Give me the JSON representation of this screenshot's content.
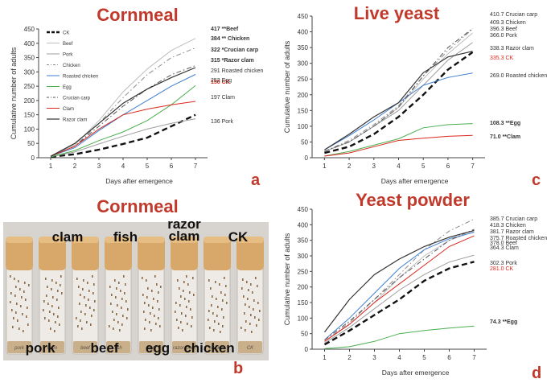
{
  "colors": {
    "title": "#c0392b",
    "ck": "#111111",
    "beef": "#bdbdbd",
    "pork": "#9e9e9e",
    "chicken": "#8c8c8c",
    "roasted_chicken": "#3f7fd0",
    "egg": "#4caf50",
    "crucian_carp": "#555555",
    "clam": "#d9281e",
    "razor_clam": "#333333"
  },
  "chart_data": [
    {
      "panel": "a",
      "type": "line",
      "title": "Cornmeal",
      "xlabel": "Days after emergence",
      "ylabel": "Cumulative number of adults",
      "x": [
        1,
        2,
        3,
        4,
        5,
        6,
        7
      ],
      "xlim": [
        0.5,
        7.5
      ],
      "ylim": [
        0,
        450
      ],
      "yticks": [
        0,
        50,
        100,
        150,
        200,
        250,
        300,
        350,
        400,
        450
      ],
      "legend": [
        "CK",
        "Beef",
        "Pork",
        "Chicken",
        "Roasted chicken",
        "Egg",
        "Crucian carp",
        "Clam",
        "Razor clam"
      ],
      "legend_position": "top-left",
      "series": [
        {
          "name": "CK",
          "key": "ck",
          "dash": "dash",
          "width": 2.4,
          "values": [
            3,
            12,
            28,
            48,
            70,
            110,
            150
          ],
          "label": "150 CK",
          "label_bold": true,
          "label_red": true
        },
        {
          "name": "Beef",
          "key": "beef",
          "dash": "solid",
          "width": 1,
          "values": [
            5,
            45,
            130,
            230,
            310,
            375,
            417
          ],
          "label": "417 **Beef",
          "label_bold": true,
          "label_red": false
        },
        {
          "name": "Pork",
          "key": "pork",
          "dash": "solid",
          "width": 1,
          "values": [
            3,
            20,
            48,
            75,
            100,
            120,
            136
          ],
          "label": "136 Pork",
          "label_bold": false,
          "label_red": false
        },
        {
          "name": "Chicken",
          "key": "chicken",
          "dash": "dashdot",
          "width": 1,
          "values": [
            5,
            40,
            120,
            210,
            290,
            350,
            384
          ],
          "label": "384 ** Chicken",
          "label_bold": true,
          "label_red": false
        },
        {
          "name": "Roasted chicken",
          "key": "roasted_chicken",
          "dash": "solid",
          "width": 1,
          "values": [
            5,
            35,
            95,
            150,
            200,
            250,
            291
          ],
          "label": "291 Roasted chicken",
          "label_bold": false,
          "label_red": false
        },
        {
          "name": "Egg",
          "key": "egg",
          "dash": "solid",
          "width": 1,
          "values": [
            3,
            25,
            60,
            90,
            130,
            185,
            252
          ],
          "label": "252 Egg",
          "label_bold": false,
          "label_red": false
        },
        {
          "name": "Crucian carp",
          "key": "crucian_carp",
          "dash": "dashdot",
          "width": 1,
          "values": [
            5,
            40,
            110,
            180,
            240,
            290,
            322
          ],
          "label": "322 *Crucian carp",
          "label_bold": true,
          "label_red": false
        },
        {
          "name": "Clam",
          "key": "clam",
          "dash": "solid",
          "width": 1,
          "values": [
            5,
            40,
            100,
            150,
            170,
            185,
            197
          ],
          "label": "197 Clam",
          "label_bold": false,
          "label_red": false
        },
        {
          "name": "Razor clam",
          "key": "razor_clam",
          "dash": "solid",
          "width": 1.2,
          "values": [
            5,
            50,
            120,
            190,
            240,
            280,
            315
          ],
          "label": "315 *Razor clam",
          "label_bold": true,
          "label_red": false
        }
      ]
    },
    {
      "panel": "c",
      "type": "line",
      "title": "Live yeast",
      "xlabel": "Days after emergence",
      "ylabel": "Cumulative number of adults",
      "x": [
        1,
        2,
        3,
        4,
        5,
        6,
        7
      ],
      "xlim": [
        0.5,
        7.5
      ],
      "ylim": [
        0,
        450
      ],
      "yticks": [
        0,
        50,
        100,
        150,
        200,
        250,
        300,
        350,
        400,
        450
      ],
      "series": [
        {
          "name": "CK",
          "key": "ck",
          "dash": "dash",
          "width": 2.4,
          "values": [
            15,
            35,
            75,
            130,
            200,
            280,
            335.3
          ],
          "label": "335.3 CK",
          "label_bold": false,
          "label_red": true
        },
        {
          "name": "Beef",
          "key": "beef",
          "dash": "solid",
          "width": 1,
          "values": [
            20,
            50,
            100,
            160,
            250,
            330,
            396.3
          ],
          "label": "396.3 Beef",
          "label_bold": false,
          "label_red": false
        },
        {
          "name": "Pork",
          "key": "pork",
          "dash": "solid",
          "width": 1,
          "values": [
            20,
            50,
            100,
            150,
            230,
            310,
            366
          ],
          "label": "366.0 Pork",
          "label_bold": false,
          "label_red": false
        },
        {
          "name": "Chicken",
          "key": "chicken",
          "dash": "dashdot",
          "width": 1,
          "values": [
            20,
            55,
            105,
            165,
            260,
            340,
            409.3
          ],
          "label": "409.3 Chicken",
          "label_bold": false,
          "label_red": false
        },
        {
          "name": "Roasted chicken",
          "key": "roasted_chicken",
          "dash": "solid",
          "width": 1,
          "values": [
            25,
            70,
            120,
            175,
            230,
            255,
            269
          ],
          "label": "269.0 Roasted chicken",
          "label_bold": false,
          "label_red": false
        },
        {
          "name": "Egg",
          "key": "egg",
          "dash": "solid",
          "width": 1,
          "values": [
            5,
            20,
            40,
            60,
            95,
            105,
            108.3
          ],
          "label": "108.3 **Egg",
          "label_bold": true,
          "label_red": false
        },
        {
          "name": "Crucian carp",
          "key": "crucian_carp",
          "dash": "dashdot",
          "width": 1,
          "values": [
            20,
            50,
            100,
            160,
            260,
            350,
            410.7
          ],
          "label": "410.7 Crucian carp",
          "label_bold": false,
          "label_red": false
        },
        {
          "name": "Clam",
          "key": "clam",
          "dash": "solid",
          "width": 1,
          "values": [
            5,
            15,
            35,
            55,
            62,
            68,
            71
          ],
          "label": "71.0 **Clam",
          "label_bold": true,
          "label_red": false
        },
        {
          "name": "Razor clam",
          "key": "razor_clam",
          "dash": "solid",
          "width": 1.2,
          "values": [
            25,
            75,
            130,
            175,
            270,
            320,
            338.3
          ],
          "label": "338.3 Razor clam",
          "label_bold": false,
          "label_red": false
        }
      ]
    },
    {
      "panel": "d",
      "type": "line",
      "title": "Yeast powder",
      "xlabel": "Days after emergence",
      "ylabel": "Cumulative number of adults",
      "x": [
        1,
        2,
        3,
        4,
        5,
        6,
        7
      ],
      "xlim": [
        0.5,
        7.5
      ],
      "ylim": [
        0,
        450
      ],
      "yticks": [
        0,
        50,
        100,
        150,
        200,
        250,
        300,
        350,
        400,
        450
      ],
      "series": [
        {
          "name": "CK",
          "key": "ck",
          "dash": "dash",
          "width": 2.4,
          "values": [
            15,
            60,
            110,
            160,
            220,
            260,
            281
          ],
          "label": "281.0 CK",
          "label_bold": false,
          "label_red": true
        },
        {
          "name": "Beef",
          "key": "beef",
          "dash": "solid",
          "width": 1,
          "values": [
            25,
            80,
            150,
            230,
            300,
            350,
            378
          ],
          "label": "378.0 Beef",
          "label_bold": false,
          "label_red": false
        },
        {
          "name": "Pork",
          "key": "pork",
          "dash": "solid",
          "width": 1,
          "values": [
            20,
            70,
            130,
            190,
            240,
            280,
            302.3
          ],
          "label": "302.3 Pork",
          "label_bold": false,
          "label_red": false
        },
        {
          "name": "Chicken",
          "key": "chicken",
          "dash": "dashdot",
          "width": 1,
          "values": [
            25,
            85,
            160,
            240,
            320,
            380,
            418.3
          ],
          "label": "418.3 Chicken",
          "label_bold": false,
          "label_red": false
        },
        {
          "name": "Roasted chicken",
          "key": "roasted_chicken",
          "dash": "solid",
          "width": 1,
          "values": [
            30,
            100,
            180,
            260,
            320,
            355,
            375.7
          ],
          "label": "375.7 Roasted chicken",
          "label_bold": false,
          "label_red": false
        },
        {
          "name": "Egg",
          "key": "egg",
          "dash": "solid",
          "width": 1,
          "values": [
            2,
            8,
            25,
            50,
            60,
            68,
            74.3
          ],
          "label": "74.3 **Egg",
          "label_bold": true,
          "label_red": false
        },
        {
          "name": "Crucian carp",
          "key": "crucian_carp",
          "dash": "dashdot",
          "width": 1,
          "values": [
            30,
            90,
            160,
            230,
            290,
            350,
            385.7
          ],
          "label": "385.7 Crucian carp",
          "label_bold": false,
          "label_red": false
        },
        {
          "name": "Clam",
          "key": "clam",
          "dash": "solid",
          "width": 1,
          "values": [
            25,
            80,
            150,
            210,
            270,
            330,
            364.3
          ],
          "label": "364.3 Clam",
          "label_bold": false,
          "label_red": false
        },
        {
          "name": "Razor clam",
          "key": "razor_clam",
          "dash": "solid",
          "width": 1.2,
          "values": [
            55,
            160,
            240,
            290,
            330,
            360,
            381.7
          ],
          "label": "381.7 Razor clam",
          "label_bold": false,
          "label_red": false
        }
      ]
    }
  ],
  "photo": {
    "title": "Cornmeal",
    "top_labels": [
      "clam",
      "fish",
      "razor clam",
      "CK"
    ],
    "bottom_labels": [
      "pork",
      "beef",
      "egg",
      "chicken"
    ],
    "tube_labels": [
      "pork",
      "clam",
      "beef",
      "fish",
      "egg",
      "razor clam",
      "chicken",
      "CK"
    ]
  },
  "panel_letters": [
    "a",
    "b",
    "c",
    "d"
  ]
}
